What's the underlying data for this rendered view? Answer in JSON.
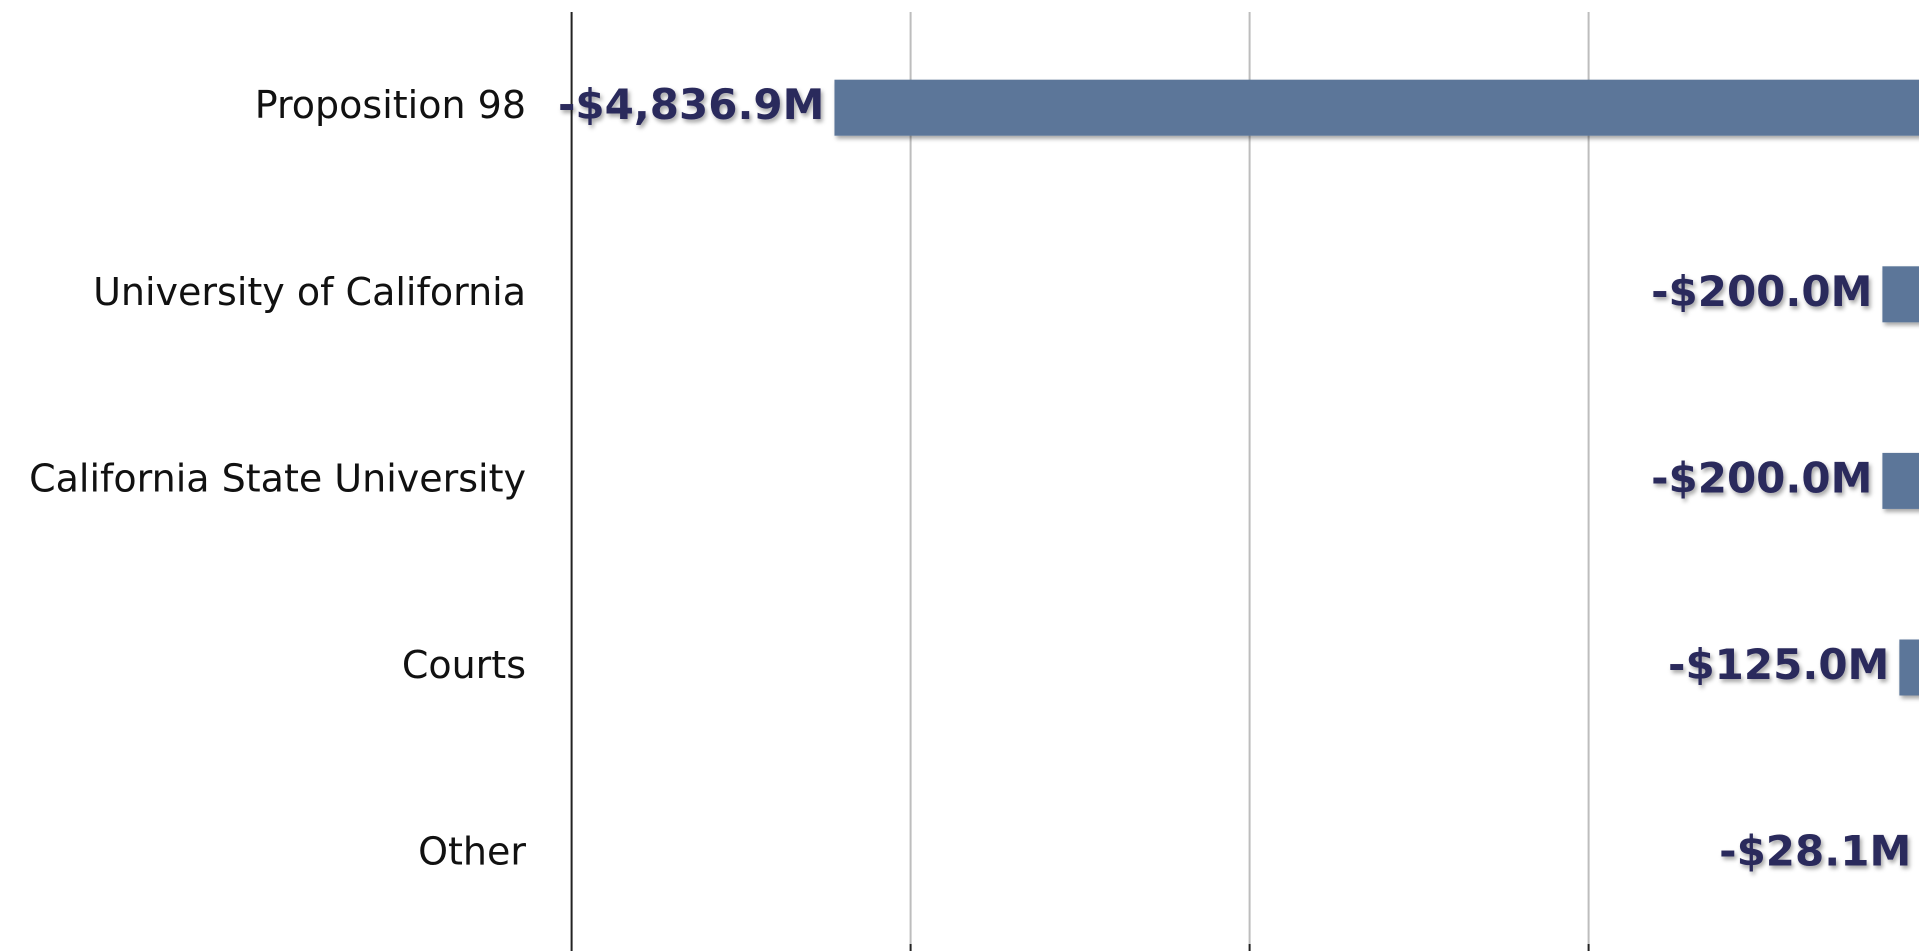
{
  "chart_data": {
    "type": "hbar",
    "categories": [
      "Proposition 98",
      "University of California",
      "California State University",
      "Courts",
      "Other"
    ],
    "values": [
      -4836.9,
      -200.0,
      -200.0,
      -125.0,
      -28.1
    ],
    "value_labels": [
      "-$4,836.9M",
      "-$200.0M",
      "-$200.0M",
      "-$125.0M",
      "-$28.1M"
    ],
    "color": "#5b7699",
    "xlim": [
      -6000,
      0
    ],
    "xticks": [
      -6000,
      -4500,
      -3000,
      -1500
    ],
    "grid": true
  }
}
